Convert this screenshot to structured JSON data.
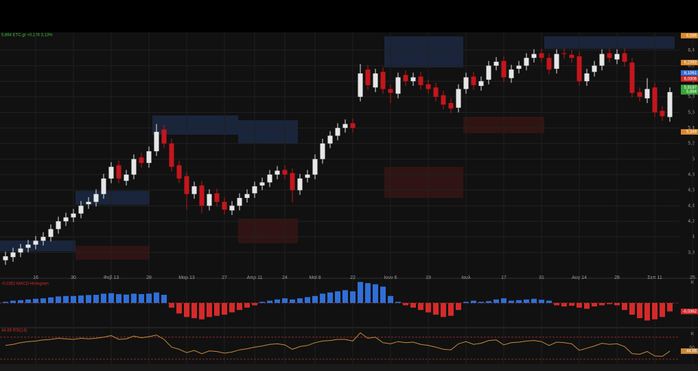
{
  "chart_data": [
    {
      "type": "candlestick",
      "title": "5,864 ETC.gr +0,178 3,13%",
      "categories": [
        null,
        null,
        null,
        null,
        "16",
        null,
        null,
        null,
        null,
        "30",
        null,
        null,
        null,
        null,
        "Φεβ 13",
        null,
        null,
        null,
        null,
        "28",
        null,
        null,
        null,
        null,
        "Μαρ 13",
        null,
        null,
        null,
        null,
        "27",
        null,
        null,
        null,
        "Απρ 11",
        null,
        null,
        null,
        "24",
        null,
        null,
        null,
        "Μαϊ 8",
        null,
        null,
        null,
        null,
        "22",
        null,
        null,
        null,
        null,
        "Ιουν 6",
        null,
        null,
        null,
        null,
        "19",
        null,
        null,
        null,
        null,
        "Ιουλ",
        null,
        null,
        null,
        null,
        "17",
        null,
        null,
        null,
        null,
        "31",
        null,
        null,
        null,
        null,
        "Αυγ 14",
        null,
        null,
        null,
        null,
        "28",
        null,
        null,
        null,
        null,
        "Σεπ 11",
        null,
        null,
        null,
        null,
        "25"
      ],
      "open": [
        3.7,
        3.74,
        3.8,
        3.86,
        3.9,
        3.95,
        4.0,
        4.1,
        4.2,
        4.25,
        4.3,
        4.42,
        4.45,
        4.55,
        4.75,
        4.92,
        4.72,
        4.8,
        5.02,
        4.95,
        5.1,
        5.38,
        5.2,
        4.92,
        4.78,
        4.55,
        4.66,
        4.4,
        4.56,
        4.45,
        4.34,
        4.4,
        4.5,
        4.56,
        4.66,
        4.7,
        4.8,
        4.86,
        4.82,
        4.6,
        4.76,
        4.8,
        5.0,
        5.2,
        5.3,
        5.4,
        5.46,
        5.8,
        6.15,
        5.92,
        6.12,
        5.9,
        5.84,
        6.08,
        6.0,
        6.06,
        5.96,
        5.92,
        5.82,
        5.72,
        5.66,
        5.9,
        6.06,
        5.94,
        6.02,
        6.2,
        6.26,
        6.04,
        6.16,
        6.2,
        6.3,
        6.36,
        6.3,
        6.16,
        6.36,
        6.34,
        6.32,
        6.0,
        6.12,
        6.2,
        6.36,
        6.28,
        6.36,
        6.24,
        5.86,
        5.78,
        5.92,
        5.62,
        5.54,
        null,
        null,
        null
      ],
      "high": [
        3.81,
        3.86,
        3.91,
        3.96,
        4.01,
        4.06,
        4.16,
        4.26,
        4.31,
        4.36,
        4.46,
        4.51,
        4.61,
        4.81,
        4.96,
        4.98,
        4.86,
        5.06,
        5.08,
        5.16,
        5.45,
        5.44,
        5.26,
        4.98,
        4.84,
        4.71,
        4.72,
        4.61,
        4.62,
        4.51,
        4.46,
        4.56,
        4.61,
        4.71,
        4.76,
        4.86,
        4.91,
        4.92,
        4.88,
        4.81,
        4.86,
        5.06,
        5.26,
        5.36,
        5.46,
        5.51,
        5.52,
        6.22,
        6.21,
        6.16,
        6.18,
        5.96,
        6.11,
        6.14,
        6.11,
        6.12,
        6.02,
        5.98,
        5.88,
        5.78,
        5.96,
        6.11,
        6.12,
        6.06,
        6.26,
        6.31,
        6.32,
        6.21,
        6.26,
        6.36,
        6.41,
        6.42,
        6.36,
        6.41,
        6.42,
        6.4,
        6.38,
        6.16,
        6.26,
        6.41,
        6.42,
        6.41,
        6.42,
        6.3,
        5.92,
        6.04,
        5.98,
        5.68,
        5.92,
        null,
        null,
        null
      ],
      "low": [
        3.64,
        3.68,
        3.74,
        3.8,
        3.84,
        3.89,
        3.94,
        4.04,
        4.14,
        4.19,
        4.24,
        4.36,
        4.39,
        4.49,
        4.69,
        4.69,
        4.66,
        4.74,
        4.89,
        4.89,
        5.04,
        5.14,
        4.84,
        4.69,
        4.35,
        4.49,
        4.3,
        4.34,
        4.39,
        4.29,
        4.28,
        4.34,
        4.44,
        4.5,
        4.6,
        4.64,
        4.74,
        4.74,
        4.44,
        4.54,
        4.7,
        4.74,
        4.94,
        5.14,
        5.24,
        5.34,
        5.34,
        5.74,
        5.89,
        5.86,
        5.84,
        5.72,
        5.78,
        5.94,
        5.94,
        5.89,
        5.84,
        5.74,
        5.64,
        5.59,
        5.6,
        5.84,
        5.89,
        5.88,
        5.96,
        6.14,
        5.99,
        5.98,
        6.1,
        6.14,
        6.24,
        6.24,
        6.09,
        6.1,
        6.29,
        6.24,
        5.94,
        5.94,
        6.06,
        6.14,
        6.24,
        6.22,
        6.19,
        5.79,
        5.74,
        5.72,
        5.54,
        5.49,
        5.48,
        null,
        null,
        null
      ],
      "close": [
        3.75,
        3.8,
        3.85,
        3.9,
        3.95,
        4.0,
        4.1,
        4.2,
        4.25,
        4.3,
        4.4,
        4.45,
        4.55,
        4.75,
        4.9,
        4.75,
        4.8,
        5.0,
        4.95,
        5.1,
        5.35,
        5.2,
        4.9,
        4.75,
        4.55,
        4.65,
        4.4,
        4.55,
        4.45,
        4.35,
        4.4,
        4.5,
        4.55,
        4.65,
        4.7,
        4.8,
        4.85,
        4.8,
        4.6,
        4.75,
        4.8,
        5.0,
        5.2,
        5.3,
        5.4,
        5.45,
        5.4,
        6.1,
        5.95,
        6.1,
        5.9,
        5.85,
        6.05,
        6.0,
        6.05,
        5.95,
        5.9,
        5.8,
        5.7,
        5.65,
        5.9,
        6.05,
        5.95,
        6.0,
        6.2,
        6.25,
        6.05,
        6.15,
        6.2,
        6.3,
        6.35,
        6.3,
        6.15,
        6.35,
        6.35,
        6.3,
        6.0,
        6.1,
        6.2,
        6.35,
        6.3,
        6.35,
        6.25,
        5.85,
        5.8,
        5.9,
        5.6,
        5.55,
        5.86,
        null,
        null,
        null
      ],
      "up_color": "#e6e6e6",
      "down_color": "#c4161c",
      "ylim": [
        3.53,
        6.62
      ],
      "yticks": [
        {
          "value": 3.8,
          "label": "3,8"
        },
        4,
        {
          "value": 4.2,
          "label": "4,2"
        },
        {
          "value": 4.4,
          "label": "4,4"
        },
        {
          "value": 4.6,
          "label": "4,6"
        },
        {
          "value": 4.8,
          "label": "4,8"
        },
        5,
        {
          "value": 5.2,
          "label": "5,2"
        },
        {
          "value": 5.4,
          "label": "5,4"
        },
        {
          "value": 5.6,
          "label": "5,6"
        },
        {
          "value": 5.8,
          "label": "5,8"
        },
        6,
        {
          "value": 6.2,
          "label": "6,2"
        },
        {
          "value": 6.4,
          "label": "6,4"
        }
      ],
      "grid": true,
      "annotations": [
        {
          "value": 6.586,
          "label": "6,586"
        },
        {
          "value": 6.2393,
          "label": "6,2393"
        },
        {
          "value": 6.1061,
          "label": "6,1061"
        },
        {
          "value": 6.0306,
          "label": "6,0306"
        },
        {
          "value": 5.9197,
          "label": "5,9197"
        },
        {
          "value": 5.864,
          "label": "5,864"
        },
        {
          "value": 5.349,
          "label": "5,349"
        }
      ],
      "annotation_colors": [
        "#d98a2b",
        "#d98a2b",
        "#3b6fd6",
        "#d42a2a",
        "#3aa53a",
        "#3aa53a",
        "#d98a2b"
      ]
    },
    {
      "type": "bar",
      "title": "-0,0362 MACD-Histogram",
      "values": [
        0.005,
        0.01,
        0.012,
        0.015,
        0.018,
        0.02,
        0.024,
        0.028,
        0.03,
        0.03,
        0.032,
        0.034,
        0.035,
        0.04,
        0.042,
        0.038,
        0.036,
        0.04,
        0.038,
        0.04,
        0.045,
        0.035,
        -0.02,
        -0.045,
        -0.06,
        -0.065,
        -0.07,
        -0.06,
        -0.055,
        -0.05,
        -0.04,
        -0.03,
        -0.02,
        -0.01,
        0.005,
        0.01,
        0.015,
        0.02,
        0.015,
        0.02,
        0.025,
        0.03,
        0.04,
        0.045,
        0.05,
        0.055,
        0.05,
        0.09,
        0.085,
        0.08,
        0.07,
        0.03,
        0.005,
        -0.01,
        -0.02,
        -0.03,
        -0.04,
        -0.05,
        -0.06,
        -0.055,
        -0.03,
        0.005,
        0.01,
        0.005,
        0.008,
        0.015,
        0.02,
        0.01,
        0.012,
        0.015,
        0.018,
        0.014,
        0.01,
        -0.01,
        -0.015,
        -0.012,
        -0.02,
        -0.025,
        -0.015,
        -0.01,
        -0.005,
        -0.01,
        -0.03,
        -0.05,
        -0.065,
        -0.075,
        -0.07,
        -0.06,
        -0.0362,
        null,
        null,
        null
      ],
      "positive_color": "#2f6fd6",
      "negative_color": "#d42a2a",
      "ylim": [
        -0.1,
        0.1
      ],
      "annotations": [
        {
          "value": -0.0362,
          "label": "-0,0362"
        }
      ]
    },
    {
      "type": "line",
      "title": "44,66 RSI(14)",
      "values": [
        55,
        57,
        60,
        62,
        63,
        65,
        66,
        68,
        67,
        66,
        68,
        67,
        68,
        70,
        73,
        66,
        67,
        72,
        69,
        71,
        74,
        66,
        52,
        48,
        42,
        46,
        40,
        45,
        44,
        41,
        43,
        47,
        49,
        52,
        54,
        57,
        58,
        56,
        48,
        53,
        55,
        60,
        63,
        64,
        66,
        66,
        63,
        78,
        68,
        70,
        60,
        58,
        62,
        60,
        61,
        57,
        55,
        52,
        48,
        47,
        58,
        62,
        57,
        59,
        64,
        65,
        56,
        60,
        61,
        63,
        64,
        62,
        55,
        61,
        60,
        58,
        46,
        50,
        54,
        59,
        57,
        58,
        53,
        40,
        39,
        44,
        36,
        35,
        44.66,
        null,
        null,
        null
      ],
      "color": "#c98a3a",
      "ylim": [
        21,
        86
      ],
      "yticks": [
        50
      ],
      "levels": [
        70,
        30
      ],
      "annotations": [
        {
          "value": 44.66,
          "label": "44,66"
        }
      ]
    }
  ]
}
